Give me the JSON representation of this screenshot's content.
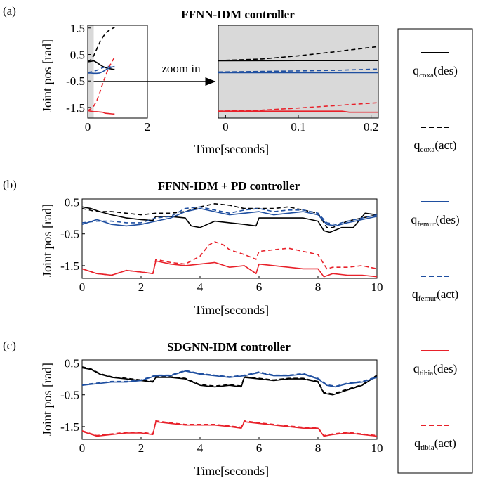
{
  "colors": {
    "black": "#000000",
    "blue": "#1f4fa0",
    "red": "#e8212a",
    "shade": "#d9d9d9"
  },
  "panels": {
    "a": {
      "tag": "(a)",
      "title": "FFNN-IDM controller",
      "zoom_label": "zoom in"
    },
    "b": {
      "tag": "(b)",
      "title": "FFNN-IDM + PD controller"
    },
    "c": {
      "tag": "(c)",
      "title": "SDGNN-IDM controller"
    }
  },
  "axes": {
    "ylabel": "Joint pos [rad]",
    "xlabel": "Time[seconds]"
  },
  "legend": [
    {
      "sym": "q",
      "sub": "coxa",
      "tag": "(des)",
      "color": "black",
      "dash": false
    },
    {
      "sym": "q",
      "sub": "coxa",
      "tag": "(act)",
      "color": "black",
      "dash": true
    },
    {
      "sym": "q",
      "sub": "femur",
      "tag": "(des)",
      "color": "blue",
      "dash": false
    },
    {
      "sym": "q",
      "sub": "femur",
      "tag": "(act)",
      "color": "blue",
      "dash": true
    },
    {
      "sym": "q",
      "sub": "tibia",
      "tag": "(des)",
      "color": "red",
      "dash": false
    },
    {
      "sym": "q",
      "sub": "tibia",
      "tag": "(act)",
      "color": "red",
      "dash": true
    }
  ],
  "chart_data": [
    {
      "id": "a_main",
      "type": "line",
      "xlim": [
        0,
        2
      ],
      "ylim": [
        -1.9,
        1.6
      ],
      "xticks": [
        "0",
        "2"
      ],
      "xtick_values": [
        0,
        2
      ],
      "yticks": [
        "1.5",
        "0.5",
        "-0.5",
        "-1.5"
      ],
      "ytick_values": [
        1.5,
        0.5,
        -0.5,
        -1.5
      ],
      "shade": [
        0,
        0.2
      ],
      "series": [
        {
          "color": "black",
          "dash": false,
          "x": [
            0,
            0.1,
            0.2,
            0.3,
            0.4,
            0.5,
            0.6,
            0.7,
            0.8,
            0.9
          ],
          "y": [
            0.22,
            0.24,
            0.26,
            0.2,
            0.12,
            0.05,
            0.0,
            -0.03,
            -0.05,
            -0.07
          ]
        },
        {
          "color": "black",
          "dash": true,
          "x": [
            0,
            0.1,
            0.2,
            0.3,
            0.4,
            0.5,
            0.6,
            0.7,
            0.8,
            0.9
          ],
          "y": [
            0.22,
            0.3,
            0.45,
            0.7,
            0.95,
            1.15,
            1.3,
            1.4,
            1.47,
            1.52
          ]
        },
        {
          "color": "blue",
          "dash": false,
          "x": [
            0,
            0.1,
            0.2,
            0.3,
            0.4,
            0.5,
            0.6,
            0.7,
            0.8,
            0.9
          ],
          "y": [
            -0.2,
            -0.2,
            -0.21,
            -0.21,
            -0.2,
            -0.15,
            -0.08,
            -0.02,
            0.02,
            0.05
          ]
        },
        {
          "color": "blue",
          "dash": true,
          "x": [
            0,
            0.1,
            0.2,
            0.3,
            0.4,
            0.5,
            0.6,
            0.7,
            0.8,
            0.9
          ],
          "y": [
            -0.18,
            -0.16,
            -0.14,
            -0.1,
            -0.05,
            0.0,
            0.03,
            0.05,
            0.02,
            -0.02
          ]
        },
        {
          "color": "red",
          "dash": false,
          "x": [
            0,
            0.1,
            0.2,
            0.3,
            0.4,
            0.5,
            0.6,
            0.7,
            0.8,
            0.9
          ],
          "y": [
            -1.62,
            -1.64,
            -1.66,
            -1.66,
            -1.67,
            -1.68,
            -1.72,
            -1.73,
            -1.74,
            -1.75
          ]
        },
        {
          "color": "red",
          "dash": true,
          "x": [
            0,
            0.1,
            0.2,
            0.3,
            0.4,
            0.5,
            0.6,
            0.7,
            0.8,
            0.9
          ],
          "y": [
            -1.62,
            -1.55,
            -1.45,
            -1.25,
            -0.95,
            -0.6,
            -0.3,
            0.0,
            0.2,
            0.4
          ]
        }
      ]
    },
    {
      "id": "a_zoom",
      "type": "line",
      "xlim": [
        -0.01,
        0.21
      ],
      "ylim": [
        -1.9,
        1.6
      ],
      "xticks": [
        "0",
        "0.1",
        "0.2"
      ],
      "xtick_values": [
        0,
        0.1,
        0.2
      ],
      "shade": [
        -0.01,
        0.21
      ],
      "series": [
        {
          "color": "black",
          "dash": false,
          "x": [
            -0.01,
            0.05,
            0.1,
            0.15,
            0.21
          ],
          "y": [
            0.26,
            0.265,
            0.27,
            0.27,
            0.27
          ]
        },
        {
          "color": "black",
          "dash": true,
          "x": [
            -0.01,
            0.05,
            0.1,
            0.15,
            0.21
          ],
          "y": [
            0.27,
            0.33,
            0.45,
            0.6,
            0.8
          ]
        },
        {
          "color": "blue",
          "dash": false,
          "x": [
            -0.01,
            0.1,
            0.21
          ],
          "y": [
            -0.19,
            -0.19,
            -0.19
          ]
        },
        {
          "color": "blue",
          "dash": true,
          "x": [
            -0.01,
            0.05,
            0.1,
            0.15,
            0.21
          ],
          "y": [
            -0.16,
            -0.14,
            -0.12,
            -0.1,
            -0.05
          ]
        },
        {
          "color": "red",
          "dash": false,
          "x": [
            -0.01,
            0.16,
            0.17,
            0.21
          ],
          "y": [
            -1.64,
            -1.64,
            -1.68,
            -1.68
          ]
        },
        {
          "color": "red",
          "dash": true,
          "x": [
            -0.01,
            0.05,
            0.1,
            0.15,
            0.21
          ],
          "y": [
            -1.64,
            -1.6,
            -1.52,
            -1.43,
            -1.32
          ]
        }
      ]
    },
    {
      "id": "b",
      "type": "line",
      "xlim": [
        0,
        10
      ],
      "ylim": [
        -1.9,
        0.6
      ],
      "xticks": [
        "0",
        "2",
        "4",
        "6",
        "8",
        "10"
      ],
      "xtick_values": [
        0,
        2,
        4,
        6,
        8,
        10
      ],
      "yticks": [
        "0.5",
        "-0.5",
        "-1.5"
      ],
      "ytick_values": [
        0.5,
        -0.5,
        -1.5
      ],
      "series": [
        {
          "color": "black",
          "dash": false,
          "x": [
            0,
            0.3,
            0.6,
            1,
            1.5,
            2,
            2.4,
            2.5,
            3,
            3.5,
            3.7,
            4,
            4.5,
            5,
            5.5,
            5.9,
            6,
            6.5,
            7,
            7.5,
            8,
            8.2,
            8.4,
            8.8,
            9.2,
            9.6,
            10
          ],
          "y": [
            0.35,
            0.3,
            0.2,
            0.1,
            0.0,
            -0.05,
            -0.08,
            0.05,
            0.05,
            0.0,
            -0.25,
            -0.3,
            -0.1,
            -0.15,
            -0.2,
            -0.25,
            0.0,
            0.0,
            0.0,
            0.0,
            -0.1,
            -0.4,
            -0.45,
            -0.3,
            -0.3,
            0.15,
            0.1
          ]
        },
        {
          "color": "black",
          "dash": true,
          "x": [
            0,
            0.5,
            1,
            1.5,
            2,
            2.5,
            3,
            3.5,
            4,
            4.5,
            5,
            5.5,
            6,
            6.5,
            7,
            7.5,
            8,
            8.3,
            8.5,
            9,
            9.5,
            10
          ],
          "y": [
            0.3,
            0.2,
            0.2,
            0.15,
            0.1,
            0.15,
            0.15,
            0.2,
            0.35,
            0.45,
            0.4,
            0.3,
            0.3,
            0.3,
            0.35,
            0.25,
            0.15,
            -0.3,
            -0.3,
            -0.1,
            0.0,
            0.1
          ]
        },
        {
          "color": "blue",
          "dash": false,
          "x": [
            0,
            0.5,
            1,
            1.5,
            2,
            2.5,
            3,
            3.5,
            4,
            4.5,
            5,
            5.5,
            6,
            6.5,
            7,
            7.5,
            8,
            8.3,
            8.6,
            9,
            9.5,
            10
          ],
          "y": [
            -0.2,
            -0.05,
            -0.2,
            -0.25,
            -0.2,
            -0.1,
            0.0,
            0.2,
            0.3,
            0.2,
            0.1,
            0.15,
            0.2,
            0.1,
            0.15,
            0.2,
            0.1,
            -0.2,
            -0.25,
            -0.15,
            -0.05,
            0.05
          ]
        },
        {
          "color": "blue",
          "dash": true,
          "x": [
            0,
            0.5,
            1,
            1.5,
            2,
            2.5,
            3,
            3.5,
            4,
            4.5,
            5,
            5.5,
            6,
            6.5,
            7,
            7.5,
            8,
            8.3,
            8.6,
            9,
            9.5,
            10
          ],
          "y": [
            -0.15,
            -0.1,
            -0.1,
            -0.15,
            -0.15,
            0.0,
            0.05,
            0.3,
            0.35,
            0.25,
            0.15,
            0.25,
            0.3,
            0.2,
            0.25,
            0.25,
            0.15,
            -0.15,
            -0.2,
            -0.1,
            0.0,
            0.1
          ]
        },
        {
          "color": "red",
          "dash": false,
          "x": [
            0,
            0.5,
            1,
            1.5,
            2,
            2.4,
            2.5,
            3,
            3.5,
            4,
            4.5,
            5,
            5.5,
            5.9,
            6,
            6.5,
            7,
            7.5,
            8,
            8.2,
            8.5,
            9,
            9.5,
            10
          ],
          "y": [
            -1.6,
            -1.75,
            -1.8,
            -1.65,
            -1.7,
            -1.75,
            -1.35,
            -1.45,
            -1.5,
            -1.45,
            -1.4,
            -1.55,
            -1.5,
            -1.75,
            -1.45,
            -1.5,
            -1.55,
            -1.6,
            -1.6,
            -1.85,
            -1.75,
            -1.8,
            -1.8,
            -1.85
          ]
        },
        {
          "color": "red",
          "dash": true,
          "x": [
            0,
            0.5,
            1,
            1.5,
            2,
            2.4,
            2.5,
            3,
            3.5,
            4,
            4.3,
            4.5,
            4.8,
            5,
            5.5,
            5.9,
            6,
            6.5,
            7,
            7.5,
            8,
            8.3,
            8.5,
            9,
            9.5,
            10
          ],
          "y": [
            -1.6,
            -1.75,
            -1.8,
            -1.65,
            -1.7,
            -1.75,
            -1.3,
            -1.4,
            -1.45,
            -1.2,
            -0.85,
            -0.75,
            -0.85,
            -1.0,
            -1.15,
            -1.3,
            -1.05,
            -1.0,
            -0.95,
            -1.05,
            -1.15,
            -1.6,
            -1.55,
            -1.55,
            -1.5,
            -1.6
          ]
        }
      ]
    },
    {
      "id": "c",
      "type": "line",
      "xlim": [
        0,
        10
      ],
      "ylim": [
        -1.9,
        0.6
      ],
      "xticks": [
        "0",
        "2",
        "4",
        "6",
        "8",
        "10"
      ],
      "xtick_values": [
        0,
        2,
        4,
        6,
        8,
        10
      ],
      "yticks": [
        "0.5",
        "-0.5",
        "-1.5"
      ],
      "ytick_values": [
        0.5,
        -0.5,
        -1.5
      ],
      "series": [
        {
          "color": "black",
          "dash": false,
          "x": [
            0,
            0.3,
            0.6,
            1,
            1.5,
            2,
            2.4,
            2.5,
            3,
            3.5,
            4,
            4.5,
            5,
            5.4,
            5.5,
            6,
            6.5,
            7,
            7.5,
            8,
            8.2,
            8.5,
            9,
            9.5,
            10
          ],
          "y": [
            0.35,
            0.3,
            0.15,
            0.05,
            0.0,
            -0.05,
            -0.1,
            0.05,
            0.05,
            0.0,
            -0.2,
            -0.25,
            -0.2,
            -0.25,
            0.05,
            0.0,
            -0.05,
            0.0,
            0.0,
            -0.1,
            -0.45,
            -0.5,
            -0.35,
            -0.2,
            0.1
          ]
        },
        {
          "color": "black",
          "dash": true,
          "x": [
            0,
            0.3,
            0.6,
            1,
            1.5,
            2,
            2.4,
            2.5,
            3,
            3.5,
            4,
            4.5,
            5,
            5.4,
            5.5,
            6,
            6.5,
            7,
            7.5,
            8,
            8.2,
            8.5,
            9,
            9.5,
            10
          ],
          "y": [
            0.38,
            0.32,
            0.17,
            0.07,
            0.02,
            -0.03,
            -0.08,
            0.07,
            0.07,
            0.02,
            -0.18,
            -0.22,
            -0.18,
            -0.22,
            0.07,
            0.02,
            -0.03,
            0.02,
            0.02,
            -0.08,
            -0.42,
            -0.47,
            -0.32,
            -0.18,
            0.12
          ]
        },
        {
          "color": "blue",
          "dash": false,
          "x": [
            0,
            0.5,
            1,
            1.5,
            2,
            2.5,
            3,
            3.5,
            4,
            4.5,
            5,
            5.5,
            6,
            6.5,
            7,
            7.5,
            8,
            8.3,
            8.6,
            9,
            9.5,
            10
          ],
          "y": [
            -0.2,
            -0.15,
            -0.1,
            -0.1,
            -0.05,
            0.1,
            0.1,
            0.25,
            0.15,
            0.1,
            0.05,
            0.1,
            0.2,
            0.1,
            0.1,
            0.15,
            0.0,
            -0.2,
            -0.25,
            -0.15,
            -0.1,
            0.05
          ]
        },
        {
          "color": "blue",
          "dash": true,
          "x": [
            0,
            0.5,
            1,
            1.5,
            2,
            2.5,
            3,
            3.5,
            4,
            4.5,
            5,
            5.5,
            6,
            6.5,
            7,
            7.5,
            8,
            8.3,
            8.6,
            9,
            9.5,
            10
          ],
          "y": [
            -0.18,
            -0.13,
            -0.08,
            -0.08,
            -0.03,
            0.12,
            0.12,
            0.27,
            0.17,
            0.12,
            0.07,
            0.12,
            0.22,
            0.12,
            0.12,
            0.17,
            0.02,
            -0.18,
            -0.23,
            -0.13,
            -0.08,
            0.07
          ]
        },
        {
          "color": "red",
          "dash": false,
          "x": [
            0,
            0.5,
            1,
            1.5,
            2,
            2.4,
            2.5,
            3,
            3.5,
            4,
            4.5,
            5,
            5.4,
            5.5,
            6,
            6.5,
            7,
            7.5,
            8,
            8.2,
            8.5,
            9,
            9.5,
            10
          ],
          "y": [
            -1.65,
            -1.8,
            -1.75,
            -1.7,
            -1.7,
            -1.75,
            -1.35,
            -1.4,
            -1.45,
            -1.45,
            -1.45,
            -1.5,
            -1.55,
            -1.35,
            -1.4,
            -1.45,
            -1.5,
            -1.55,
            -1.55,
            -1.8,
            -1.75,
            -1.7,
            -1.75,
            -1.8
          ]
        },
        {
          "color": "red",
          "dash": true,
          "x": [
            0,
            0.5,
            1,
            1.5,
            2,
            2.4,
            2.5,
            3,
            3.5,
            4,
            4.5,
            5,
            5.4,
            5.5,
            6,
            6.5,
            7,
            7.5,
            8,
            8.2,
            8.5,
            9,
            9.5,
            10
          ],
          "y": [
            -1.63,
            -1.78,
            -1.73,
            -1.68,
            -1.68,
            -1.72,
            -1.32,
            -1.38,
            -1.43,
            -1.43,
            -1.43,
            -1.48,
            -1.52,
            -1.32,
            -1.38,
            -1.43,
            -1.48,
            -1.52,
            -1.53,
            -1.78,
            -1.73,
            -1.68,
            -1.73,
            -1.78
          ]
        }
      ]
    }
  ]
}
